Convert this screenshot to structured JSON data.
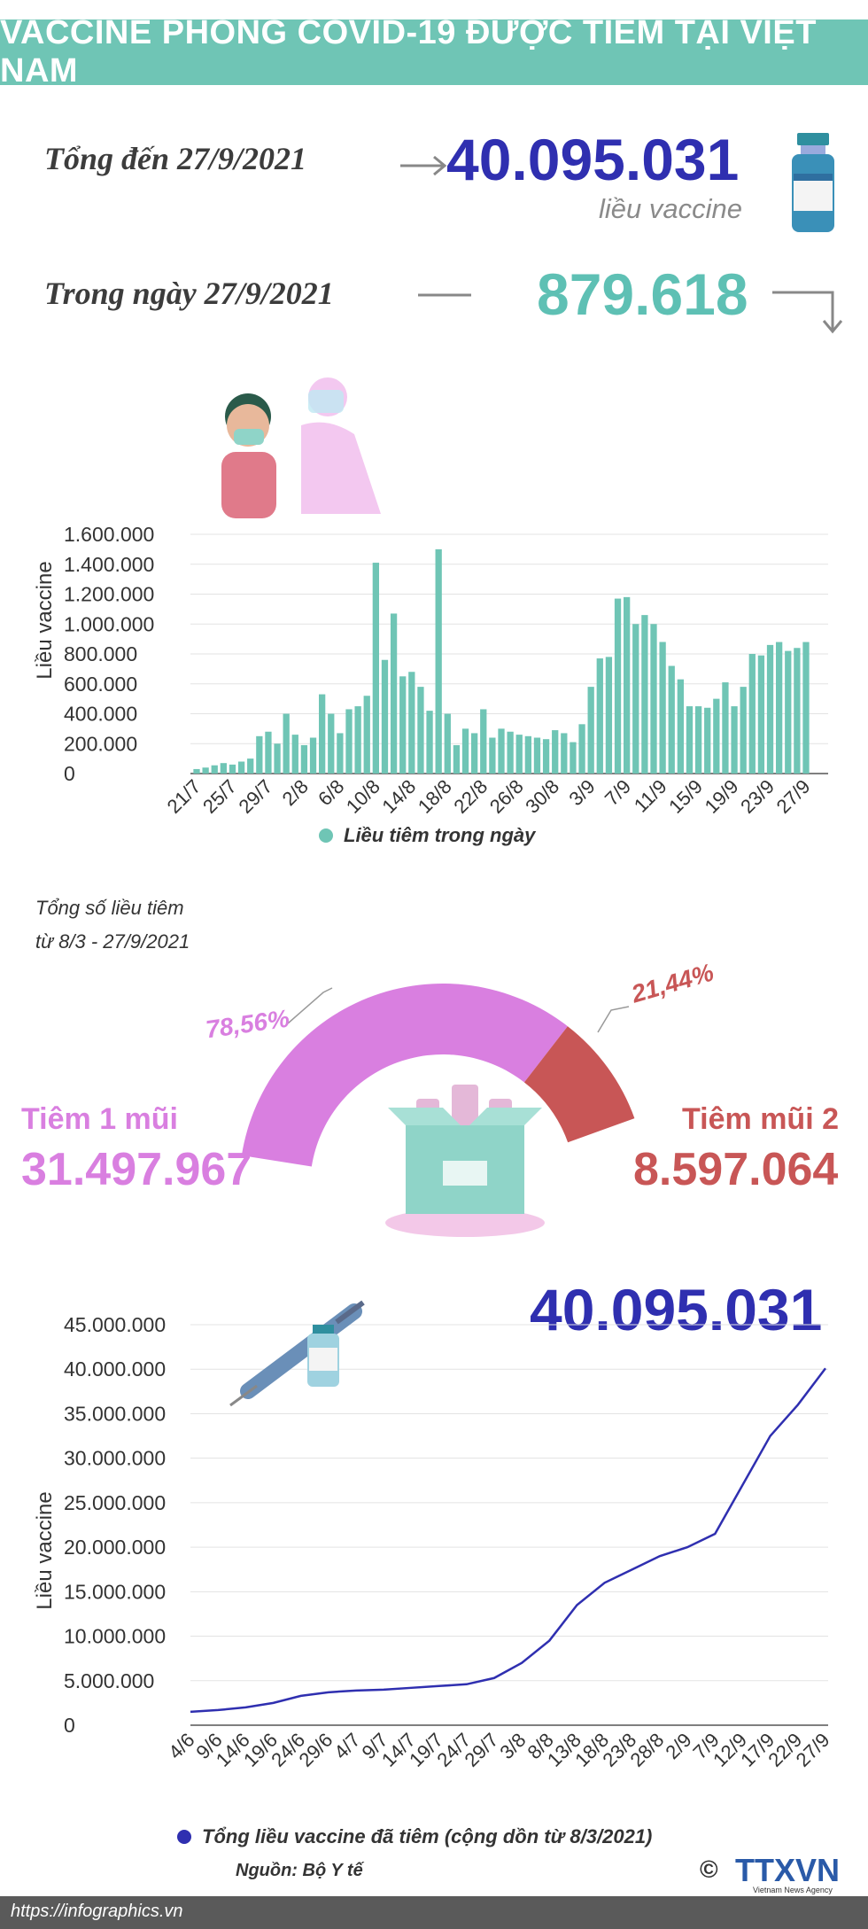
{
  "header": {
    "title": "VACCINE PHÒNG COVID-19 ĐƯỢC TIÊM TẠI VIỆT NAM"
  },
  "summary": {
    "total_label": "Tổng đến 27/9/2021",
    "total_value": "40.095.031",
    "total_unit": "liều vaccine",
    "daily_label": "Trong ngày 27/9/2021",
    "daily_value": "879.618"
  },
  "donut": {
    "title_line1": "Tổng số liều tiêm",
    "title_line2": "từ 8/3 - 27/9/2021",
    "dose1_label": "Tiêm 1 mũi",
    "dose1_value": "31.497.967",
    "dose1_pct": "78,56%",
    "dose2_label": "Tiêm mũi 2",
    "dose2_value": "8.597.064",
    "dose2_pct": "21,44%",
    "dose1_color": "#d97fe0",
    "dose2_color": "#c85656"
  },
  "cumulative_headline": "40.095.031",
  "footer": {
    "source": "Nguồn: Bộ Y tế",
    "url": "https://infographics.vn",
    "logo_text": "TTXVN",
    "logo_sub": "Vietnam News Agency"
  },
  "colors": {
    "teal": "#6fc5b5",
    "blue": "#2f2fb0",
    "grid": "#e3e3e3"
  },
  "chart_data": [
    {
      "type": "bar",
      "ylabel": "Liều vaccine",
      "ylim": [
        0,
        1600000
      ],
      "yticks": [
        "1.600.000",
        "1.400.000",
        "1.200.000",
        "1.000.000",
        "800.000",
        "600.000",
        "400.000",
        "200.000",
        "0"
      ],
      "tick_labels": [
        "21/7",
        "25/7",
        "29/7",
        "2/8",
        "6/8",
        "10/8",
        "14/8",
        "18/8",
        "22/8",
        "26/8",
        "30/8",
        "3/9",
        "7/9",
        "11/9",
        "15/9",
        "19/9",
        "23/9",
        "27/9"
      ],
      "legend": "Liều tiêm trong ngày",
      "categories": [
        "21/7",
        "22/7",
        "23/7",
        "24/7",
        "25/7",
        "26/7",
        "27/7",
        "28/7",
        "29/7",
        "30/7",
        "31/7",
        "1/8",
        "2/8",
        "3/8",
        "4/8",
        "5/8",
        "6/8",
        "7/8",
        "8/8",
        "9/8",
        "10/8",
        "11/8",
        "12/8",
        "13/8",
        "14/8",
        "15/8",
        "16/8",
        "17/8",
        "18/8",
        "19/8",
        "20/8",
        "21/8",
        "22/8",
        "23/8",
        "24/8",
        "25/8",
        "26/8",
        "27/8",
        "28/8",
        "29/8",
        "30/8",
        "31/8",
        "1/9",
        "2/9",
        "3/9",
        "4/9",
        "5/9",
        "6/9",
        "7/9",
        "8/9",
        "9/9",
        "10/9",
        "11/9",
        "12/9",
        "13/9",
        "14/9",
        "15/9",
        "16/9",
        "17/9",
        "18/9",
        "19/9",
        "20/9",
        "21/9",
        "22/9",
        "23/9",
        "24/9",
        "25/9",
        "26/9",
        "27/9"
      ],
      "values": [
        30000,
        40000,
        55000,
        70000,
        60000,
        80000,
        100000,
        250000,
        280000,
        200000,
        400000,
        260000,
        190000,
        240000,
        530000,
        400000,
        270000,
        430000,
        450000,
        520000,
        1410000,
        760000,
        1070000,
        650000,
        680000,
        580000,
        420000,
        1500000,
        400000,
        190000,
        300000,
        270000,
        430000,
        240000,
        300000,
        280000,
        260000,
        250000,
        240000,
        230000,
        290000,
        270000,
        210000,
        330000,
        580000,
        770000,
        780000,
        1170000,
        1180000,
        1000000,
        1060000,
        1000000,
        880000,
        720000,
        630000,
        450000,
        450000,
        440000,
        500000,
        610000,
        450000,
        580000,
        800000,
        790000,
        860000,
        879618,
        820000,
        840000,
        879618
      ]
    },
    {
      "type": "line",
      "ylabel": "Liều vaccine",
      "ylim": [
        0,
        45000000
      ],
      "yticks": [
        "45.000.000",
        "40.000.000",
        "35.000.000",
        "30.000.000",
        "25.000.000",
        "20.000.000",
        "15.000.000",
        "10.000.000",
        "5.000.000",
        "0"
      ],
      "tick_labels": [
        "4/6",
        "9/6",
        "14/6",
        "19/6",
        "24/6",
        "29/6",
        "4/7",
        "9/7",
        "14/7",
        "19/7",
        "24/7",
        "29/7",
        "3/8",
        "8/8",
        "13/8",
        "18/8",
        "23/8",
        "28/8",
        "2/9",
        "7/9",
        "12/9",
        "17/9",
        "22/9",
        "27/9"
      ],
      "legend": "Tổng liều vaccine đã tiêm (cộng dồn từ 8/3/2021)",
      "series": [
        {
          "x": [
            "4/6",
            "9/6",
            "14/6",
            "19/6",
            "24/6",
            "29/6",
            "4/7",
            "9/7",
            "14/7",
            "19/7",
            "24/7",
            "29/7",
            "3/8",
            "8/8",
            "13/8",
            "18/8",
            "23/8",
            "28/8",
            "2/9",
            "7/9",
            "12/9",
            "17/9",
            "22/9",
            "27/9"
          ],
          "values": [
            1500000,
            1700000,
            2000000,
            2500000,
            3300000,
            3700000,
            3900000,
            4000000,
            4200000,
            4400000,
            4600000,
            5300000,
            7000000,
            9500000,
            13500000,
            16000000,
            17500000,
            19000000,
            20000000,
            21500000,
            27000000,
            32500000,
            36000000,
            40095031
          ]
        }
      ]
    }
  ]
}
